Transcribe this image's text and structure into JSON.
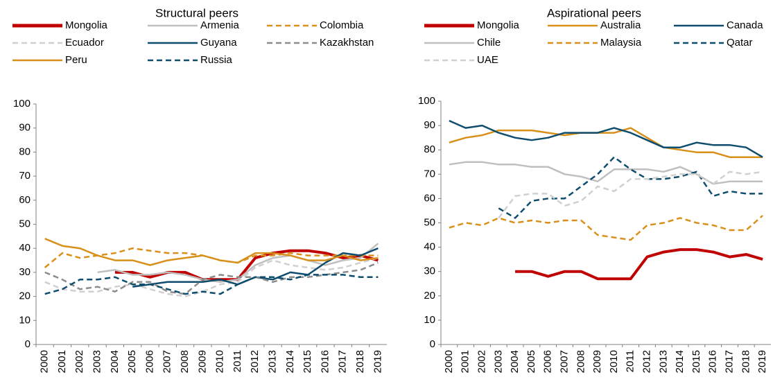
{
  "chart_data": [
    {
      "type": "line",
      "title": "Structural peers",
      "categories": [
        "2000",
        "2001",
        "2002",
        "2003",
        "2004",
        "2005",
        "2006",
        "2007",
        "2008",
        "2009",
        "2010",
        "2011",
        "2012",
        "2013",
        "2014",
        "2015",
        "2016",
        "2017",
        "2018",
        "2019"
      ],
      "ylim": [
        0,
        100
      ],
      "yticks": [
        0,
        10,
        20,
        30,
        40,
        50,
        60,
        70,
        80,
        90,
        100
      ],
      "series": [
        {
          "name": "Mongolia",
          "color": "#c00000",
          "style": "solid",
          "values": [
            null,
            null,
            null,
            null,
            30,
            30,
            28,
            30,
            30,
            27,
            27,
            27,
            36,
            38,
            39,
            39,
            38,
            36,
            37,
            35
          ]
        },
        {
          "name": "Armenia",
          "color": "#bfbfbf",
          "style": "solid",
          "values": [
            null,
            null,
            null,
            30,
            31,
            29,
            29,
            30,
            29,
            27,
            26,
            27,
            33,
            36,
            37,
            35,
            33,
            35,
            36,
            42
          ]
        },
        {
          "name": "Colombia",
          "color": "#d9901a",
          "style": "dashed",
          "values": [
            32,
            38,
            36,
            37,
            38,
            40,
            39,
            38,
            38,
            37,
            35,
            34,
            37,
            37,
            38,
            37,
            37,
            37,
            37,
            37
          ]
        },
        {
          "name": "Ecuador",
          "color": "#d0d0d0",
          "style": "dashed",
          "values": [
            26,
            23,
            22,
            22,
            24,
            25,
            23,
            21,
            20,
            22,
            25,
            26,
            32,
            35,
            33,
            32,
            31,
            32,
            34,
            36
          ]
        },
        {
          "name": "Guyana",
          "color": "#0e4d6e",
          "style": "solid",
          "values": [
            null,
            null,
            null,
            null,
            null,
            24,
            25,
            26,
            26,
            26,
            27,
            25,
            28,
            27,
            30,
            29,
            34,
            38,
            37,
            40
          ]
        },
        {
          "name": "Kazakhstan",
          "color": "#8c8c8c",
          "style": "dashed",
          "values": [
            30,
            27,
            23,
            24,
            22,
            26,
            26,
            22,
            21,
            27,
            29,
            28,
            28,
            26,
            28,
            28,
            29,
            30,
            31,
            34
          ]
        },
        {
          "name": "Peru",
          "color": "#d9901a",
          "style": "solid",
          "values": [
            44,
            41,
            40,
            37,
            35,
            35,
            33,
            35,
            36,
            37,
            35,
            34,
            38,
            38,
            37,
            35,
            35,
            37,
            35,
            36
          ]
        },
        {
          "name": "Russia",
          "color": "#0e4d6e",
          "style": "dashed",
          "values": [
            21,
            23,
            27,
            27,
            28,
            25,
            25,
            23,
            21,
            22,
            21,
            25,
            28,
            28,
            27,
            29,
            29,
            29,
            28,
            28
          ]
        }
      ]
    },
    {
      "type": "line",
      "title": "Aspirational peers",
      "categories": [
        "2000",
        "2001",
        "2002",
        "2003",
        "2004",
        "2005",
        "2006",
        "2007",
        "2008",
        "2009",
        "2010",
        "2011",
        "2012",
        "2013",
        "2014",
        "2015",
        "2016",
        "2017",
        "2018",
        "2019"
      ],
      "ylim": [
        0,
        100
      ],
      "yticks": [
        0,
        10,
        20,
        30,
        40,
        50,
        60,
        70,
        80,
        90,
        100
      ],
      "series": [
        {
          "name": "Mongolia",
          "color": "#c00000",
          "style": "solid",
          "values": [
            null,
            null,
            null,
            null,
            30,
            30,
            28,
            30,
            30,
            27,
            27,
            27,
            36,
            38,
            39,
            39,
            38,
            36,
            37,
            35
          ]
        },
        {
          "name": "Australia",
          "color": "#d9901a",
          "style": "solid",
          "values": [
            83,
            85,
            86,
            88,
            88,
            88,
            87,
            86,
            87,
            87,
            87,
            89,
            85,
            81,
            80,
            79,
            79,
            77,
            77,
            77
          ]
        },
        {
          "name": "Canada",
          "color": "#0e4d6e",
          "style": "solid",
          "values": [
            92,
            89,
            90,
            87,
            85,
            84,
            85,
            87,
            87,
            87,
            89,
            87,
            84,
            81,
            81,
            83,
            82,
            82,
            81,
            77
          ]
        },
        {
          "name": "Chile",
          "color": "#bfbfbf",
          "style": "solid",
          "values": [
            74,
            75,
            75,
            74,
            74,
            73,
            73,
            70,
            69,
            67,
            72,
            72,
            72,
            71,
            73,
            70,
            66,
            67,
            67,
            67
          ]
        },
        {
          "name": "Malaysia",
          "color": "#d9901a",
          "style": "dashed",
          "values": [
            48,
            50,
            49,
            52,
            50,
            51,
            50,
            51,
            51,
            45,
            44,
            43,
            49,
            50,
            52,
            50,
            49,
            47,
            47,
            53
          ]
        },
        {
          "name": "Qatar",
          "color": "#0e4d6e",
          "style": "dashed",
          "values": [
            null,
            null,
            null,
            56,
            52,
            59,
            60,
            60,
            65,
            70,
            77,
            72,
            68,
            68,
            69,
            71,
            61,
            63,
            62,
            62
          ]
        },
        {
          "name": "UAE",
          "color": "#d0d0d0",
          "style": "dashed",
          "values": [
            null,
            null,
            null,
            52,
            61,
            62,
            62,
            57,
            59,
            65,
            63,
            68,
            68,
            69,
            70,
            70,
            66,
            71,
            70,
            71
          ]
        }
      ]
    }
  ]
}
